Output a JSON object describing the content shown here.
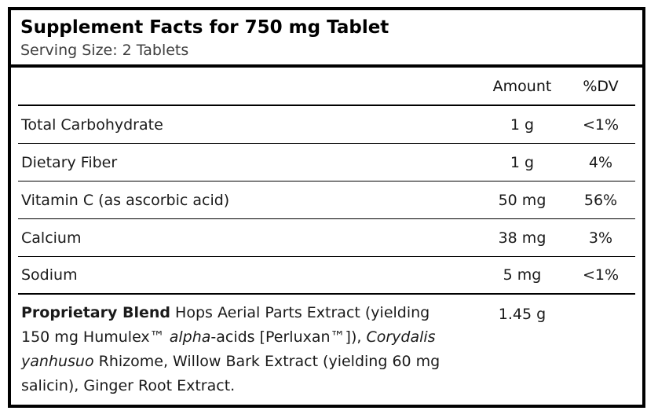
{
  "title": "Supplement Facts for 750 mg Tablet",
  "serving_size": "Serving Size: 2 Tablets",
  "columns": {
    "amount": "Amount",
    "dv": "%DV"
  },
  "rows": [
    {
      "name": "Total Carbohydrate",
      "amount": "1 g",
      "dv": "<1%"
    },
    {
      "name": "Dietary Fiber",
      "amount": "1 g",
      "dv": "4%"
    },
    {
      "name": "Vitamin C (as ascorbic acid)",
      "amount": "50 mg",
      "dv": "56%"
    },
    {
      "name": "Calcium",
      "amount": "38 mg",
      "dv": "3%"
    },
    {
      "name": "Sodium",
      "amount": "5 mg",
      "dv": "<1%"
    }
  ],
  "blend": {
    "amount": "1.45 g",
    "dv": "",
    "segments": [
      {
        "text": "Proprietary Blend",
        "style": "bold"
      },
      {
        "text": " Hops Aerial Parts Extract (yielding 150 mg Humulex™ ",
        "style": "normal"
      },
      {
        "text": "alpha",
        "style": "italic"
      },
      {
        "text": "-acids [Perluxan™]), ",
        "style": "normal"
      },
      {
        "text": "Corydalis yanhusuo",
        "style": "italic"
      },
      {
        "text": " Rhizome, Willow Bark Extract (yielding 60 mg salicin), Ginger Root Extract.",
        "style": "normal"
      }
    ]
  },
  "colors": {
    "border": "#000000",
    "title_text": "#000000",
    "body_text": "#1a1a1a",
    "muted_text": "#3f3f3f",
    "background": "#ffffff"
  }
}
